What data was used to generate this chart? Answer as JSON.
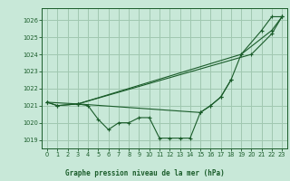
{
  "title": "Graphe pression niveau de la mer (hPa)",
  "bg_color": "#c8e8d8",
  "grid_color": "#a0c8b0",
  "line_color": "#1a5c2a",
  "text_color": "#1a5c2a",
  "xlim": [
    -0.5,
    23.5
  ],
  "ylim": [
    1018.5,
    1026.7
  ],
  "yticks": [
    1019,
    1020,
    1021,
    1022,
    1023,
    1024,
    1025,
    1026
  ],
  "xticks": [
    0,
    1,
    2,
    3,
    4,
    5,
    6,
    7,
    8,
    9,
    10,
    11,
    12,
    13,
    14,
    15,
    16,
    17,
    18,
    19,
    20,
    21,
    22,
    23
  ],
  "s1_x": [
    0,
    1,
    3,
    20,
    22,
    23
  ],
  "s1_y": [
    1021.2,
    1021.0,
    1021.1,
    1024.0,
    1025.2,
    1026.2
  ],
  "s2_x": [
    0,
    3,
    19,
    22,
    23
  ],
  "s2_y": [
    1021.2,
    1021.1,
    1024.0,
    1025.4,
    1026.2
  ],
  "s3_x": [
    0,
    1,
    3,
    4,
    5,
    6,
    7,
    8,
    9,
    10,
    11,
    12,
    13,
    14,
    15,
    16,
    17,
    18
  ],
  "s3_y": [
    1021.2,
    1021.0,
    1021.1,
    1021.0,
    1020.2,
    1019.6,
    1020.0,
    1020.0,
    1020.3,
    1020.3,
    1019.1,
    1019.1,
    1019.1,
    1019.1,
    1020.6,
    1021.0,
    1021.5,
    1022.5
  ],
  "s4_x": [
    3,
    15,
    16,
    17,
    18,
    19,
    21,
    22,
    23
  ],
  "s4_y": [
    1021.1,
    1020.6,
    1021.0,
    1021.5,
    1022.5,
    1024.0,
    1025.4,
    1026.2,
    1026.2
  ],
  "xlabel_fontsize": 5.5,
  "tick_fontsize": 4.8
}
